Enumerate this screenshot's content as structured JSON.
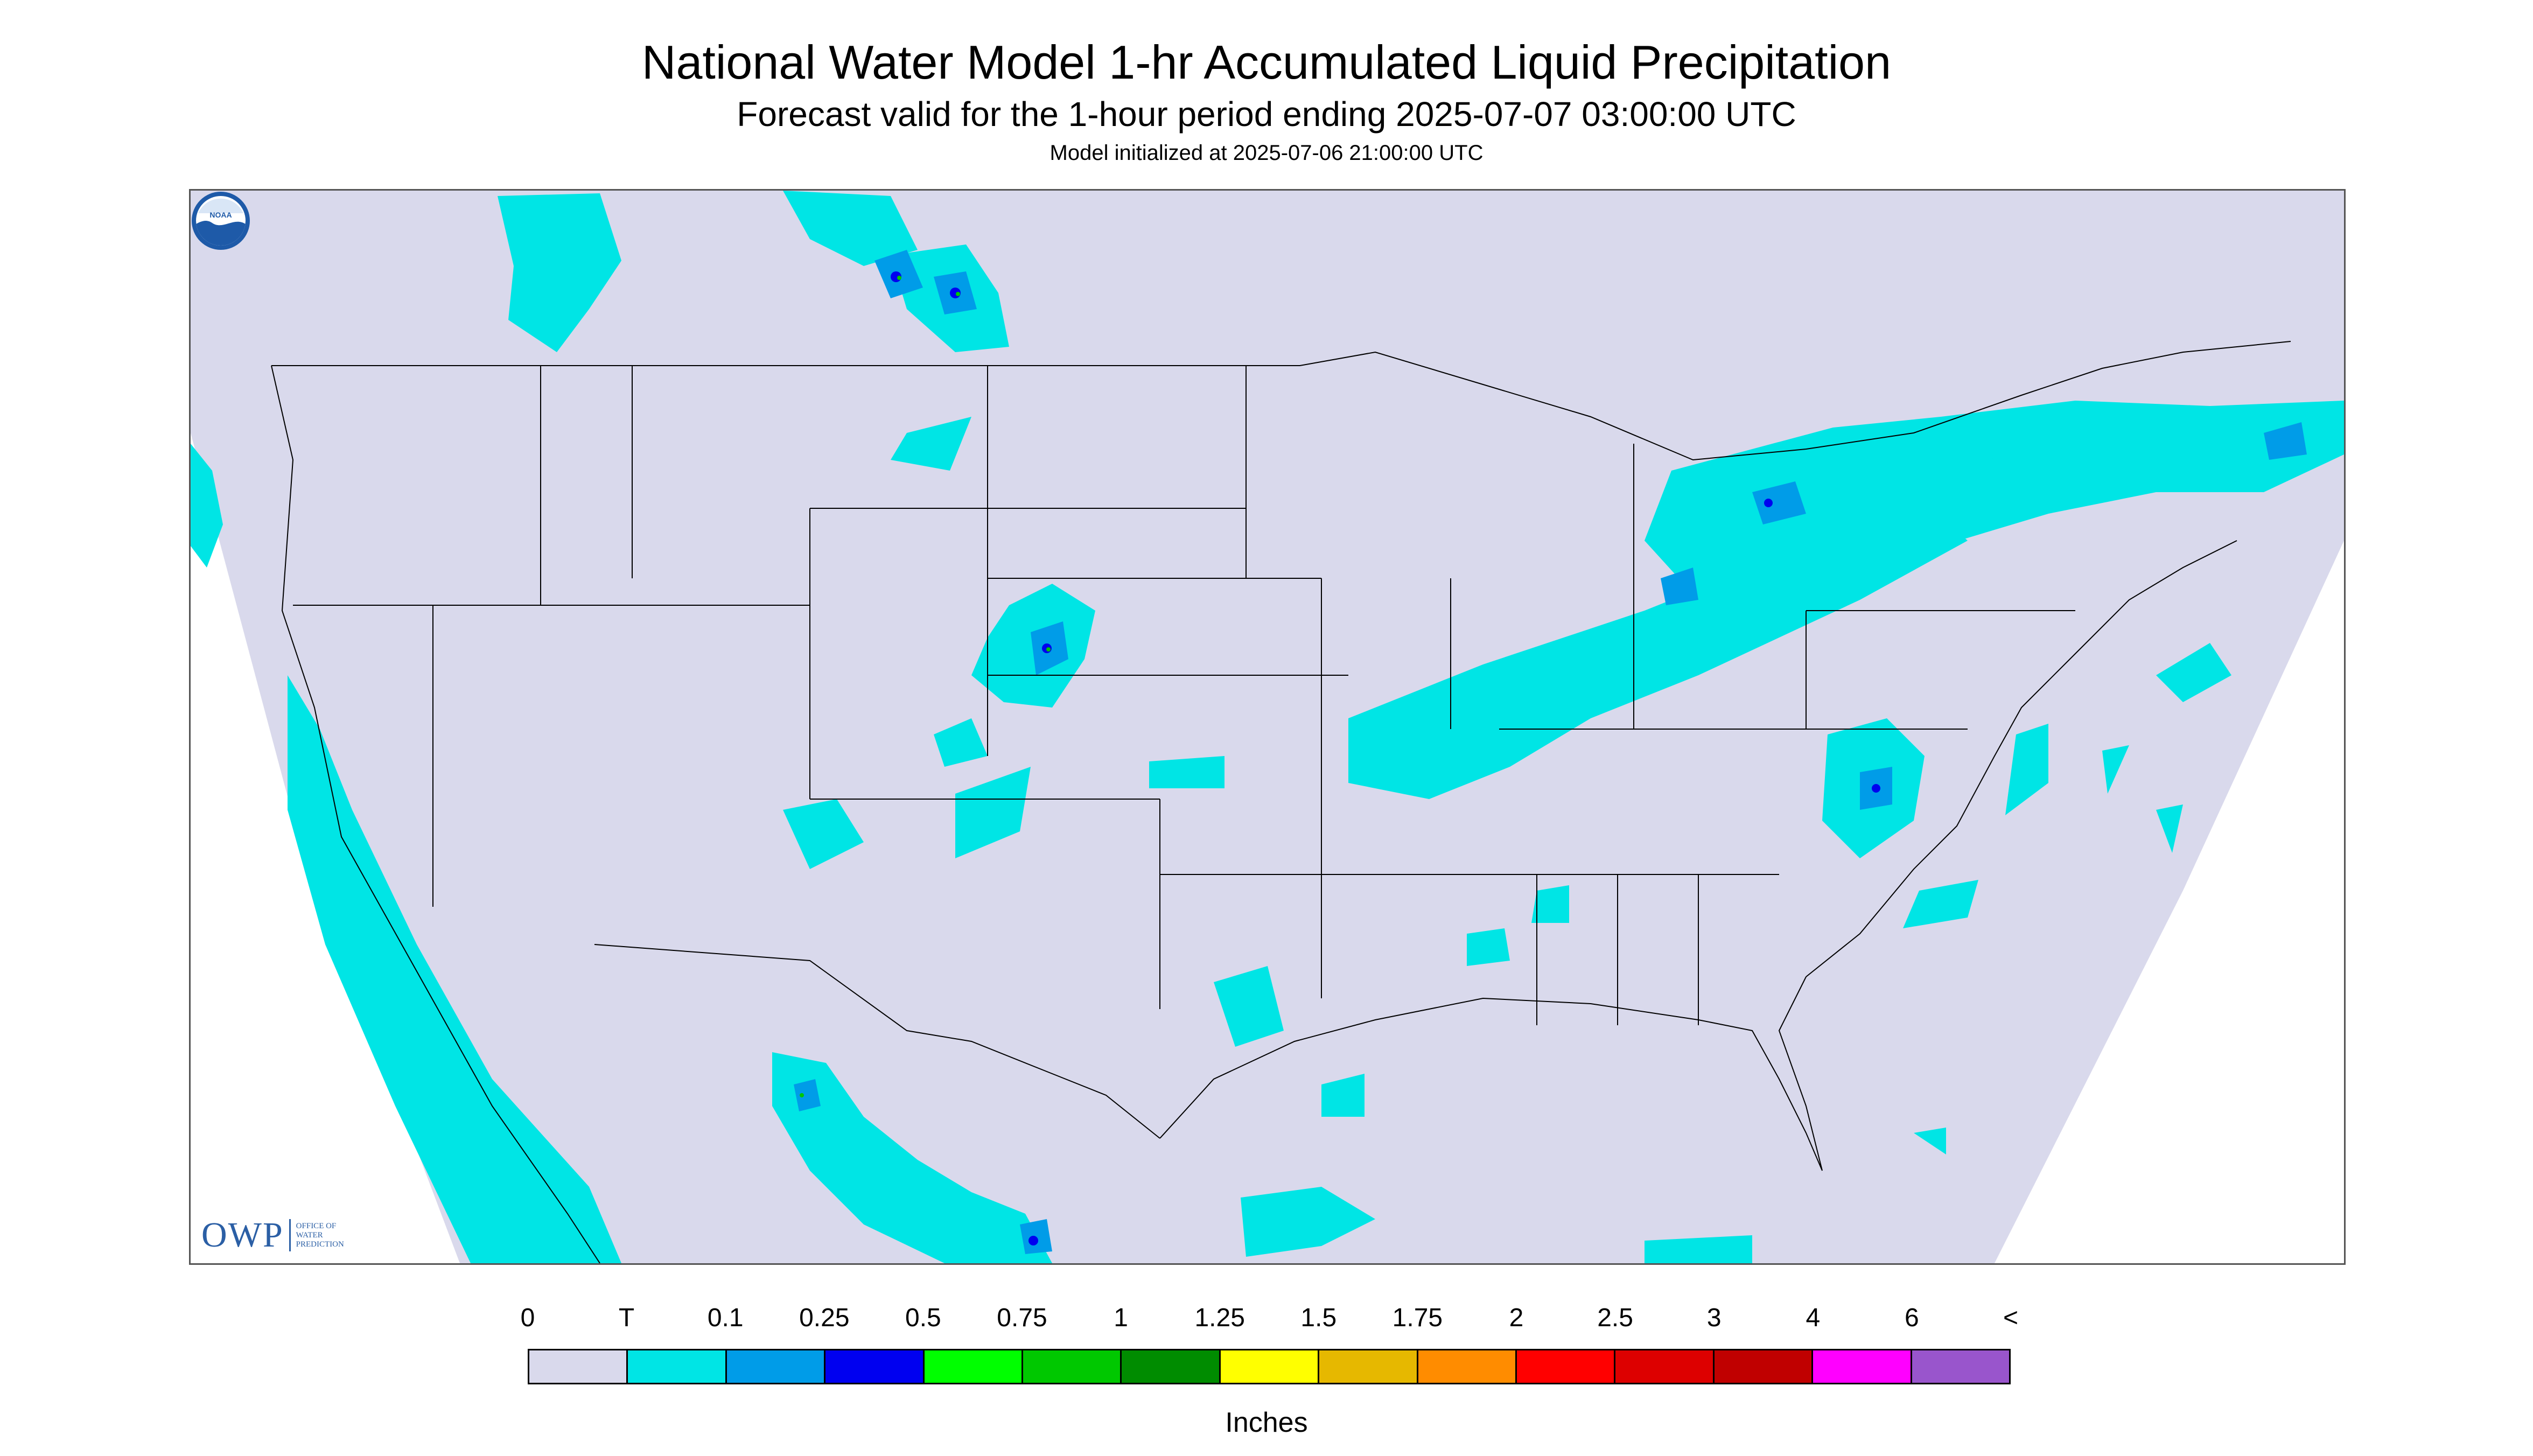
{
  "header": {
    "title": "National Water Model 1-hr Accumulated Liquid Precipitation",
    "subtitle": "Forecast valid for the 1-hour period ending 2025-07-07 03:00:00 UTC",
    "init": "Model initialized at 2025-07-06 21:00:00 UTC"
  },
  "map": {
    "region": "Contiguous United States",
    "background_color": "#d9d9ec",
    "outside_domain_color": "#ffffff",
    "boundary_color": "#000000"
  },
  "logos": {
    "owp_mark": "OWP",
    "owp_text": "OFFICE OF WATER PREDICTION",
    "noaa": "NOAA"
  },
  "legend": {
    "labels": [
      "0",
      "T",
      "0.1",
      "0.25",
      "0.5",
      "0.75",
      "1",
      "1.25",
      "1.5",
      "1.75",
      "2",
      "2.5",
      "3",
      "4",
      "6",
      "<"
    ],
    "colors": [
      "#d9d9ec",
      "#00e5e5",
      "#009ce8",
      "#0000f0",
      "#00ff00",
      "#00c800",
      "#008c00",
      "#ffff00",
      "#e6b800",
      "#ff8c00",
      "#ff0000",
      "#dd0000",
      "#c00000",
      "#ff00ff",
      "#9955cc"
    ],
    "units": "Inches"
  }
}
